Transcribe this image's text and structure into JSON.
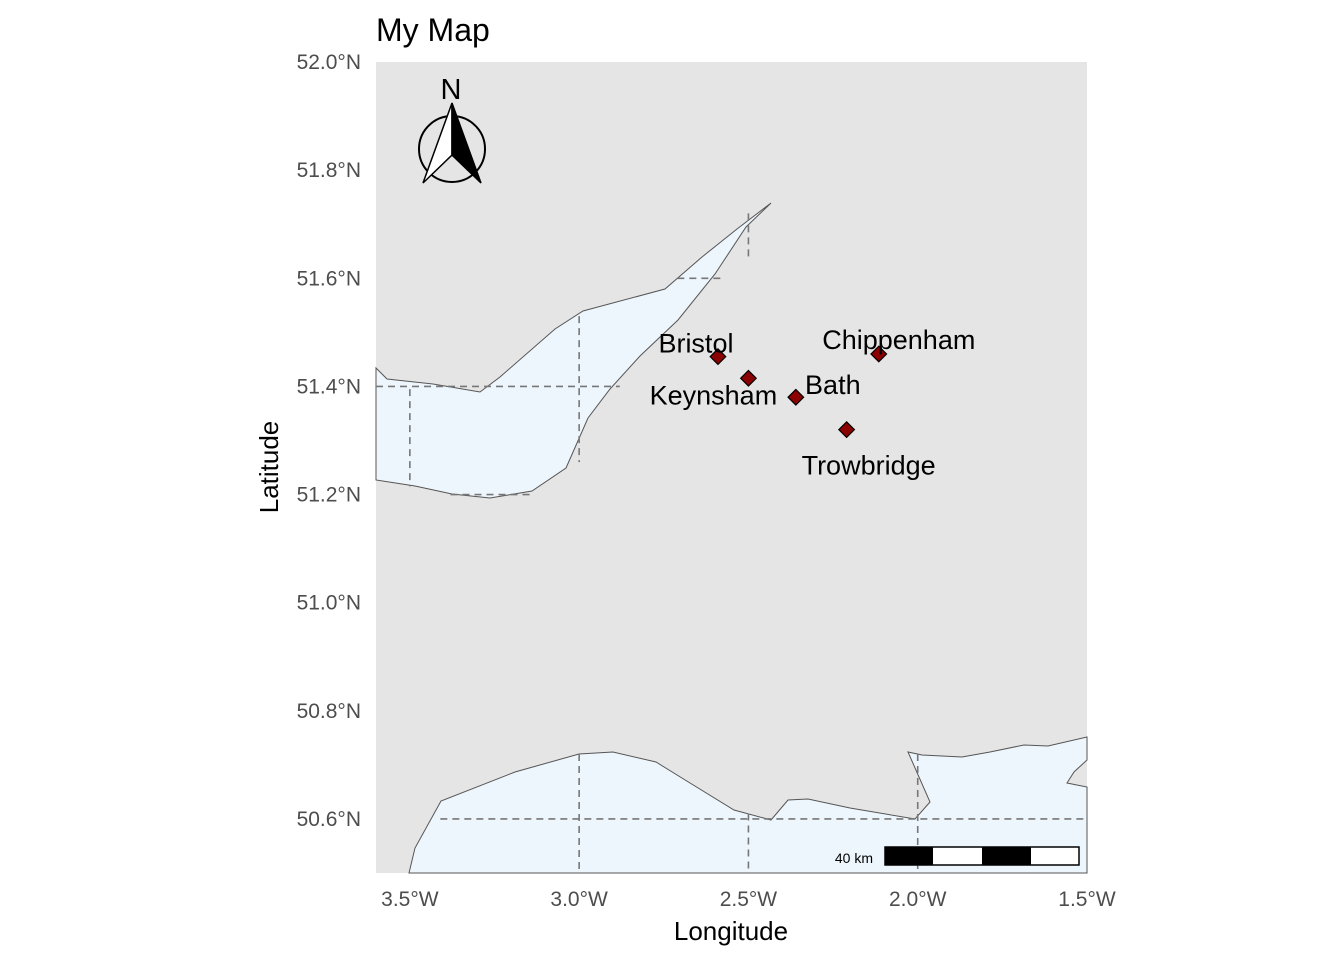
{
  "map": {
    "title": "My Map",
    "xlabel": "Longitude",
    "ylabel": "Latitude",
    "xlim": [
      -3.6,
      -1.5
    ],
    "ylim": [
      50.5,
      52.0
    ],
    "x_ticks": [
      {
        "value": -3.5,
        "label": "3.5°W"
      },
      {
        "value": -3.0,
        "label": "3.0°W"
      },
      {
        "value": -2.5,
        "label": "2.5°W"
      },
      {
        "value": -2.0,
        "label": "2.0°W"
      },
      {
        "value": -1.5,
        "label": "1.5°W"
      }
    ],
    "y_ticks": [
      {
        "value": 52.0,
        "label": "52.0°N"
      },
      {
        "value": 51.8,
        "label": "51.8°N"
      },
      {
        "value": 51.6,
        "label": "51.6°N"
      },
      {
        "value": 51.4,
        "label": "51.4°N"
      },
      {
        "value": 51.2,
        "label": "51.2°N"
      },
      {
        "value": 51.0,
        "label": "51.0°N"
      },
      {
        "value": 50.8,
        "label": "50.8°N"
      },
      {
        "value": 50.6,
        "label": "50.6°N"
      }
    ],
    "graticule_lon": [
      -3.5,
      -3.0,
      -2.5,
      -2.0
    ],
    "graticule_lat": [
      51.6,
      51.4,
      51.2,
      50.6
    ],
    "colors": {
      "land": "#e5e5e5",
      "water": "#eef6fd",
      "coast": "#555555",
      "graticule": "#777777",
      "marker": "#8b0000"
    },
    "cities": [
      {
        "name": "Bristol",
        "lon": -2.59,
        "lat": 51.455,
        "label_anchor": "above-left"
      },
      {
        "name": "Keynsham",
        "lon": -2.5,
        "lat": 51.415,
        "label_anchor": "below-left"
      },
      {
        "name": "Bath",
        "lon": -2.36,
        "lat": 51.38,
        "label_anchor": "above-right"
      },
      {
        "name": "Chippenham",
        "lon": -2.115,
        "lat": 51.46,
        "label_anchor": "above"
      },
      {
        "name": "Trowbridge",
        "lon": -2.21,
        "lat": 51.32,
        "label_anchor": "below"
      }
    ],
    "north_arrow": {
      "label": "N"
    },
    "scale_bar": {
      "label": "40 km",
      "segments": 4
    }
  }
}
